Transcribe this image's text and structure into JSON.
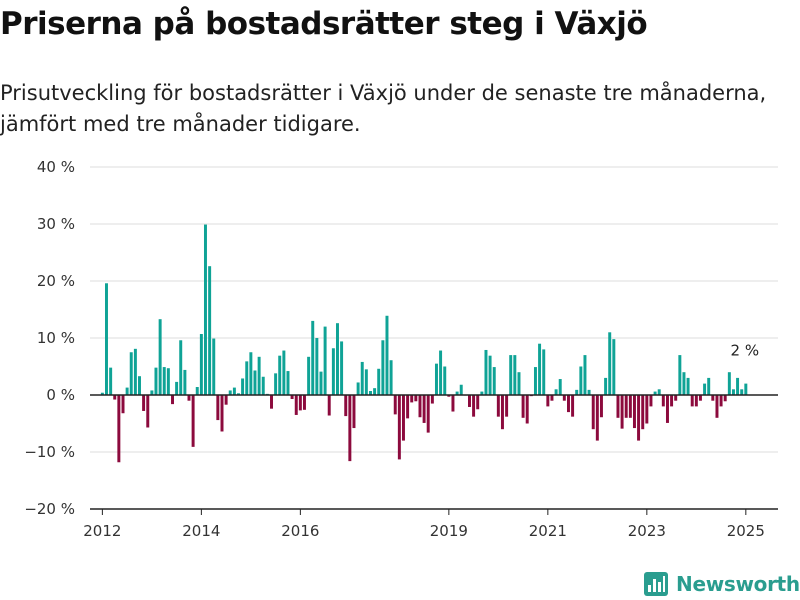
{
  "title": "Priserna på bostadsrätter steg i Växjö",
  "subtitle": "Prisutveckling för bostadsrätter i Växjö under de senaste tre månaderna, jämfört med tre månader tidigare.",
  "brand": "Newsworthy",
  "colors": {
    "positive": "#0fa396",
    "negative": "#8c0a3d",
    "brand": "#2a9d8f"
  },
  "chart_data": {
    "type": "bar",
    "ylim": [
      -20,
      40
    ],
    "xlim": [
      2011.75,
      2025.65
    ],
    "grid": true,
    "y_ticks": [
      40,
      30,
      20,
      10,
      0,
      -10,
      -20
    ],
    "y_tick_labels": [
      "40 %",
      "30 %",
      "20 %",
      "10 %",
      "0 %",
      "−10 %",
      "−20 %"
    ],
    "x_ticks": [
      2012,
      2014,
      2016,
      2019,
      2021,
      2023,
      2025
    ],
    "x_tick_labels": [
      "2012",
      "2014",
      "2016",
      "2019",
      "2021",
      "2023",
      "2025"
    ],
    "annotation": {
      "text": "2 %",
      "x": 2025.0,
      "y": 2
    },
    "x": [
      2012.0,
      2012.083,
      2012.167,
      2012.25,
      2012.333,
      2012.417,
      2012.5,
      2012.583,
      2012.667,
      2012.75,
      2012.833,
      2012.917,
      2013.0,
      2013.083,
      2013.167,
      2013.25,
      2013.333,
      2013.417,
      2013.5,
      2013.583,
      2013.667,
      2013.75,
      2013.833,
      2013.917,
      2014.0,
      2014.083,
      2014.167,
      2014.25,
      2014.333,
      2014.417,
      2014.5,
      2014.583,
      2014.667,
      2014.75,
      2014.833,
      2014.917,
      2015.0,
      2015.083,
      2015.167,
      2015.25,
      2015.333,
      2015.417,
      2015.5,
      2015.583,
      2015.667,
      2015.75,
      2015.833,
      2015.917,
      2016.0,
      2016.083,
      2016.167,
      2016.25,
      2016.333,
      2016.417,
      2016.5,
      2016.583,
      2016.667,
      2016.75,
      2016.833,
      2016.917,
      2017.0,
      2017.083,
      2017.167,
      2017.25,
      2017.333,
      2017.417,
      2017.5,
      2017.583,
      2017.667,
      2017.75,
      2017.833,
      2017.917,
      2018.0,
      2018.083,
      2018.167,
      2018.25,
      2018.333,
      2018.417,
      2018.5,
      2018.583,
      2018.667,
      2018.75,
      2018.833,
      2018.917,
      2019.0,
      2019.083,
      2019.167,
      2019.25,
      2019.333,
      2019.417,
      2019.5,
      2019.583,
      2019.667,
      2019.75,
      2019.833,
      2019.917,
      2020.0,
      2020.083,
      2020.167,
      2020.25,
      2020.333,
      2020.417,
      2020.5,
      2020.583,
      2020.667,
      2020.75,
      2020.833,
      2020.917,
      2021.0,
      2021.083,
      2021.167,
      2021.25,
      2021.333,
      2021.417,
      2021.5,
      2021.583,
      2021.667,
      2021.75,
      2021.833,
      2021.917,
      2022.0,
      2022.083,
      2022.167,
      2022.25,
      2022.333,
      2022.417,
      2022.5,
      2022.583,
      2022.667,
      2022.75,
      2022.833,
      2022.917,
      2023.0,
      2023.083,
      2023.167,
      2023.25,
      2023.333,
      2023.417,
      2023.5,
      2023.583,
      2023.667,
      2023.75,
      2023.833,
      2023.917,
      2024.0,
      2024.083,
      2024.167,
      2024.25,
      2024.333,
      2024.417,
      2024.5,
      2024.583,
      2024.667,
      2024.75,
      2024.833,
      2024.917,
      2025.0
    ],
    "values": [
      0.4,
      19.6,
      4.8,
      -0.8,
      -11.8,
      -3.2,
      1.3,
      7.5,
      8.1,
      3.3,
      -2.8,
      -5.7,
      0.8,
      4.8,
      13.3,
      4.9,
      4.7,
      -1.6,
      2.3,
      9.6,
      4.4,
      -1.0,
      -9.1,
      1.4,
      10.7,
      29.9,
      22.6,
      9.9,
      -4.4,
      -6.4,
      -1.7,
      0.8,
      1.3,
      0.3,
      2.9,
      5.9,
      7.5,
      4.3,
      6.7,
      3.2,
      0.2,
      -2.4,
      3.8,
      6.9,
      7.8,
      4.2,
      -0.7,
      -3.5,
      -2.7,
      -2.6,
      6.7,
      13.0,
      10.0,
      4.1,
      12.0,
      -3.6,
      8.2,
      12.6,
      9.4,
      -3.7,
      -11.6,
      -5.8,
      2.2,
      5.8,
      4.5,
      0.7,
      1.2,
      4.6,
      9.6,
      13.9,
      6.1,
      -3.4,
      -11.3,
      -8.0,
      -4.1,
      -1.3,
      -1.1,
      -3.9,
      -4.9,
      -6.6,
      -1.5,
      5.5,
      7.8,
      5.0,
      -0.3,
      -2.9,
      0.6,
      1.8,
      -0.1,
      -2.1,
      -3.8,
      -2.5,
      0.6,
      7.9,
      6.9,
      4.9,
      -3.8,
      -6.0,
      -3.8,
      7.0,
      7.0,
      4.0,
      -4.0,
      -5.0,
      -0.2,
      4.9,
      9.0,
      8.0,
      -2.0,
      -1.0,
      1.0,
      2.8,
      -1.0,
      -3.0,
      -3.8,
      0.9,
      5.0,
      7.0,
      0.9,
      -6.0,
      -8.0,
      -3.9,
      3.0,
      11.0,
      9.8,
      -4.0,
      -5.9,
      -4.0,
      -4.0,
      -5.8,
      -8.0,
      -6.0,
      -5.0,
      -2.0,
      0.6,
      1.0,
      -2.0,
      -4.9,
      -2.0,
      -1.0,
      7.0,
      4.0,
      3.0,
      -2.0,
      -2.0,
      -1.0,
      2.0,
      3.0,
      -1.0,
      -4.0,
      -2.0,
      -1.1,
      4.0,
      1.0,
      3.0,
      1.0,
      2.0
    ]
  }
}
